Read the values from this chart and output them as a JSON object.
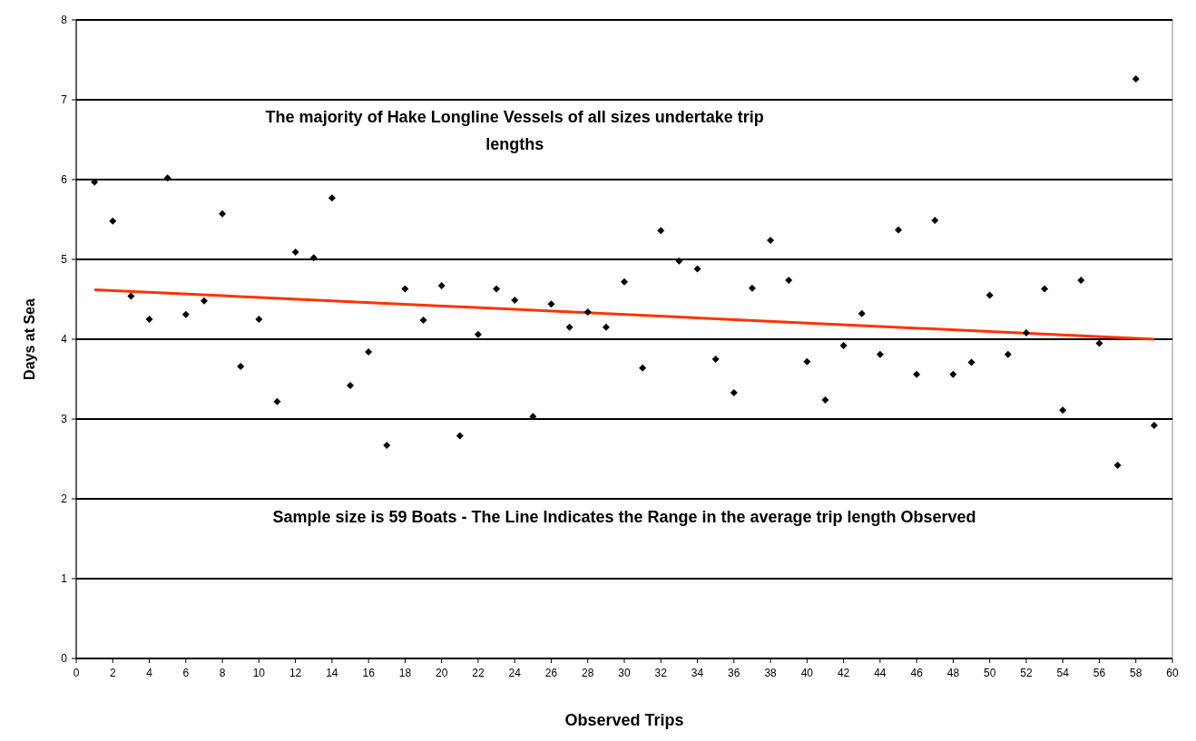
{
  "chart_data": {
    "type": "scatter",
    "xlabel": "Observed Trips",
    "ylabel": "Days at Sea",
    "annotations": [
      "The majority of Hake Longline Vessels of all sizes undertake trip lengths",
      "Sample size is 59 Boats - The Line Indicates the Range in the average trip length Observed"
    ],
    "xlim": [
      0,
      60
    ],
    "xticks": [
      0,
      2,
      4,
      6,
      8,
      10,
      12,
      14,
      16,
      18,
      20,
      22,
      24,
      26,
      28,
      30,
      32,
      34,
      36,
      38,
      40,
      42,
      44,
      46,
      48,
      50,
      52,
      54,
      56,
      58,
      60
    ],
    "ylim": [
      0,
      8
    ],
    "yticks": [
      0,
      1,
      2,
      3,
      4,
      5,
      6,
      7,
      8
    ],
    "grid": "y",
    "marker": "diamond",
    "series": [
      {
        "color": "#000000",
        "x": [
          1,
          2,
          3,
          4,
          5,
          6,
          7,
          8,
          9,
          10,
          11,
          12,
          13,
          14,
          15,
          16,
          17,
          18,
          19,
          20,
          21,
          22,
          23,
          24,
          25,
          26,
          27,
          28,
          29,
          30,
          31,
          32,
          33,
          34,
          35,
          36,
          37,
          38,
          39,
          40,
          41,
          42,
          43,
          44,
          45,
          46,
          47,
          48,
          49,
          50,
          51,
          52,
          53,
          54,
          55,
          56,
          57,
          58,
          59
        ],
        "values": [
          5.97,
          5.48,
          4.54,
          4.25,
          6.02,
          4.31,
          4.48,
          5.57,
          3.66,
          4.25,
          3.22,
          5.09,
          5.02,
          5.77,
          3.42,
          3.84,
          2.67,
          4.63,
          4.24,
          4.67,
          2.79,
          4.06,
          4.63,
          4.49,
          3.03,
          4.44,
          4.15,
          4.34,
          4.15,
          4.72,
          3.64,
          5.36,
          4.98,
          4.88,
          3.75,
          3.33,
          4.64,
          5.24,
          4.74,
          3.72,
          3.24,
          3.92,
          4.32,
          3.81,
          5.37,
          3.56,
          5.49,
          3.56,
          3.71,
          4.55,
          3.81,
          4.08,
          4.63,
          3.11,
          4.74,
          3.95,
          2.42,
          7.26,
          2.92
        ]
      },
      {
        "type": "line",
        "color": "#ff3300",
        "marker": "none",
        "x": [
          1,
          59
        ],
        "values": [
          4.62,
          4.0
        ]
      }
    ]
  }
}
